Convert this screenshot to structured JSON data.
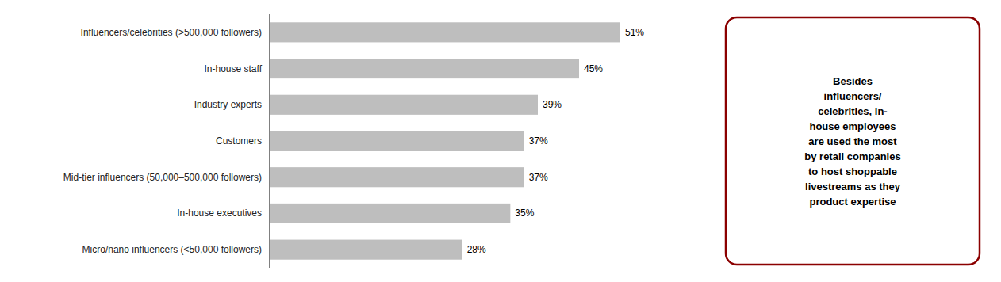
{
  "chart_data": {
    "type": "bar",
    "orientation": "horizontal",
    "categories": [
      "Micro/nano influencers (<50,000 followers)",
      "In-house executives",
      "Mid-tier influencers (50,000–500,000 followers)",
      "Customers",
      "Industry experts",
      "In-house staff",
      "Influencers/celebrities (>500,000 followers)"
    ],
    "values": [
      28,
      35,
      37,
      37,
      39,
      45,
      51
    ],
    "value_labels": [
      "28%",
      "35%",
      "37%",
      "37%",
      "39%",
      "45%",
      "51%"
    ],
    "data_labels": true,
    "color": "#BEBEBE",
    "xlim": [
      0,
      60
    ],
    "tick_labels": "y",
    "grid": false,
    "annotation": "Besides\ninfluencers/\ncelebrities, in-\nhouse employees\nare used the most\nby retail companies\nto host shoppable\nlivestreams as they\nproduct expertise"
  }
}
